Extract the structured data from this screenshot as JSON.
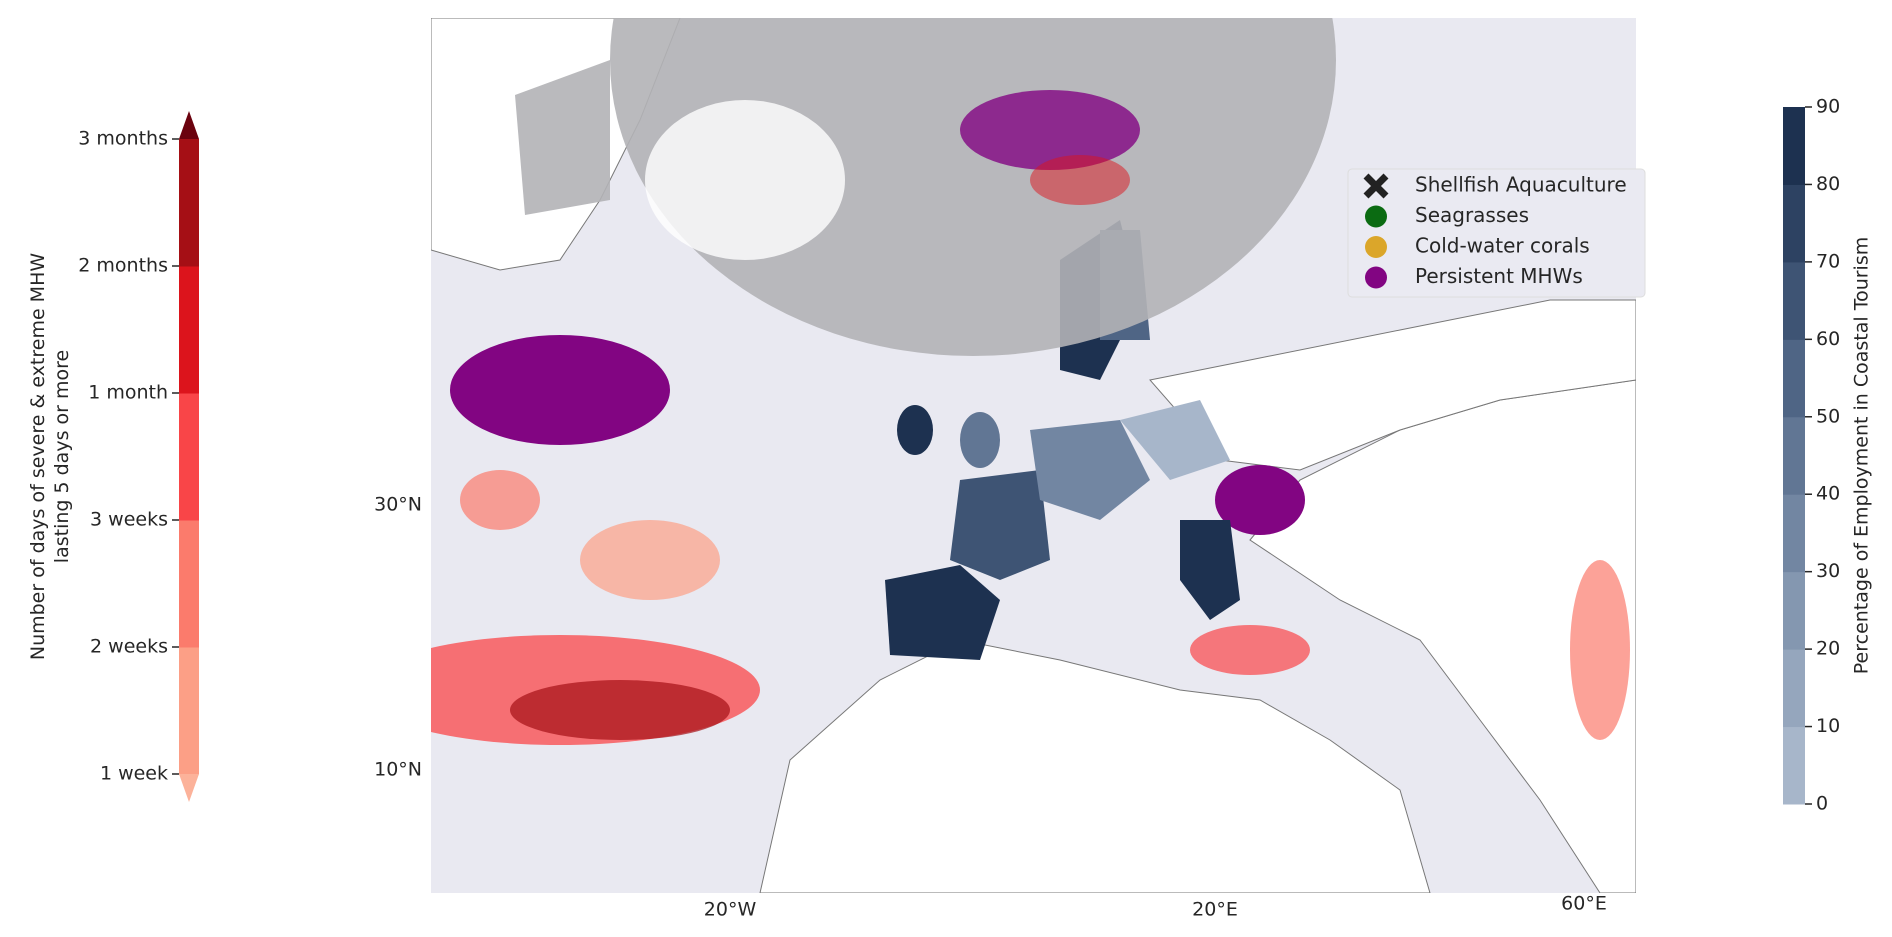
{
  "left_colorbar": {
    "label": "Number of days of severe & extreme MHW lasting 5 days or more",
    "ticks": [
      "1 week",
      "2 weeks",
      "3 weeks",
      "1 month",
      "2 months",
      "3 months"
    ],
    "colors": [
      "#fc9f86",
      "#fb7b6c",
      "#f94548",
      "#dc141c",
      "#a50f15"
    ],
    "under_color": "#fcb29a",
    "over_color": "#6b020e"
  },
  "right_colorbar": {
    "label": "Percentage of Employment in Coastal Tourism",
    "lim": [
      0,
      90
    ],
    "ticks": [
      0,
      10,
      20,
      30,
      40,
      50,
      60,
      70,
      80,
      90
    ],
    "colors": [
      "#a7b6ca",
      "#95a6bd",
      "#8497b0",
      "#7286a2",
      "#617694",
      "#4f6585",
      "#3e5474",
      "#2d4262",
      "#1d3150"
    ]
  },
  "legend": {
    "entries": [
      {
        "name": "Shellfish Aquaculture",
        "color": "#222222",
        "marker": "x"
      },
      {
        "name": "Seagrasses",
        "color": "#0b6b12",
        "marker": "o"
      },
      {
        "name": "Cold-water corals",
        "color": "#dba62a",
        "marker": "o"
      },
      {
        "name": "Persistent MHWs",
        "color": "#820582",
        "marker": "o"
      }
    ]
  },
  "map": {
    "lat_labels": [
      "30°N",
      "10°N"
    ],
    "lon_labels": [
      "20°W",
      "20°E",
      "60°E"
    ]
  }
}
